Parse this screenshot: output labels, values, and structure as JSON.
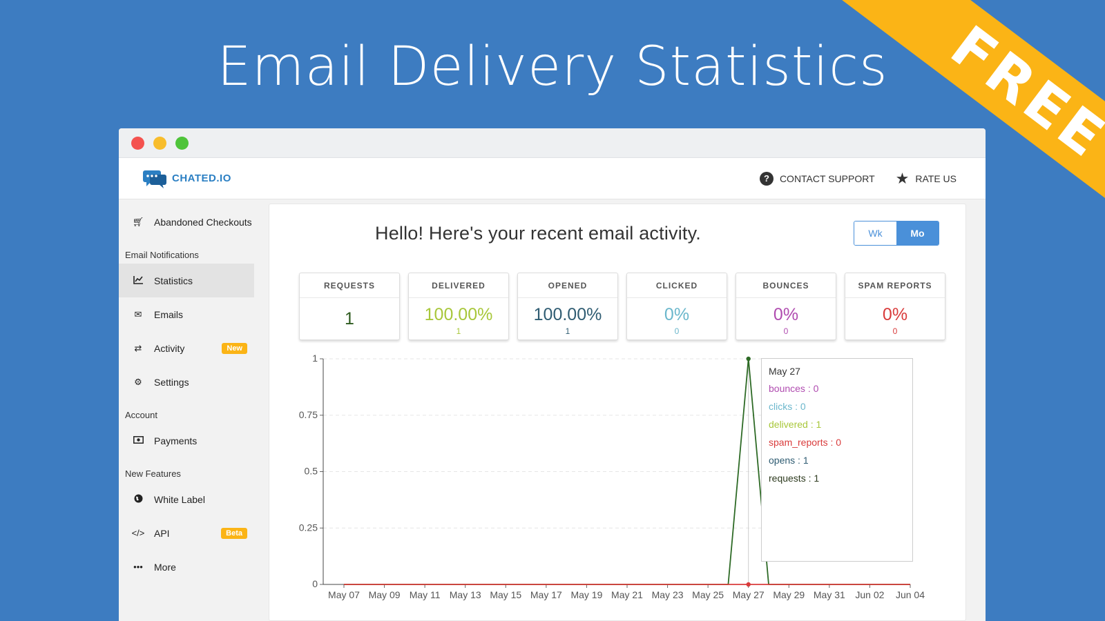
{
  "banner": {
    "title": "Email Delivery Statistics",
    "ribbon": "FREE"
  },
  "app": {
    "logo_text": "CHATED.IO",
    "contact_support": "CONTACT SUPPORT",
    "rate_us": "RATE US"
  },
  "sidebar": {
    "abandoned": "Abandoned Checkouts",
    "section_email": "Email Notifications",
    "statistics": "Statistics",
    "emails": "Emails",
    "activity": "Activity",
    "activity_badge": "New",
    "settings": "Settings",
    "section_account": "Account",
    "payments": "Payments",
    "section_features": "New Features",
    "white_label": "White Label",
    "api": "API",
    "api_badge": "Beta",
    "more": "More"
  },
  "main": {
    "greeting": "Hello! Here's your recent email activity.",
    "toggle_wk": "Wk",
    "toggle_mo": "Mo"
  },
  "cards": [
    {
      "label": "REQUESTS",
      "value": "1",
      "sub": "",
      "color": "#2d5a1e"
    },
    {
      "label": "DELIVERED",
      "value": "100.00%",
      "sub": "1",
      "color": "#a8c73a"
    },
    {
      "label": "OPENED",
      "value": "100.00%",
      "sub": "1",
      "color": "#2f5c72"
    },
    {
      "label": "CLICKED",
      "value": "0%",
      "sub": "0",
      "color": "#6bb7cc"
    },
    {
      "label": "BOUNCES",
      "value": "0%",
      "sub": "0",
      "color": "#b04cb0"
    },
    {
      "label": "SPAM REPORTS",
      "value": "0%",
      "sub": "0",
      "color": "#d93b3b"
    }
  ],
  "tooltip": {
    "date": "May 27",
    "rows": [
      {
        "text": "bounces : 0",
        "color": "#b04cb0"
      },
      {
        "text": "clicks : 0",
        "color": "#6bb7cc"
      },
      {
        "text": "delivered : 1",
        "color": "#a8c73a"
      },
      {
        "text": "spam_reports : 0",
        "color": "#d93b3b"
      },
      {
        "text": "opens : 1",
        "color": "#2f5c72"
      },
      {
        "text": "requests : 1",
        "color": "#2d3a1e"
      }
    ]
  },
  "chart_data": {
    "type": "line",
    "x": [
      "May 07",
      "May 08",
      "May 09",
      "May 10",
      "May 11",
      "May 12",
      "May 13",
      "May 14",
      "May 15",
      "May 16",
      "May 17",
      "May 18",
      "May 19",
      "May 20",
      "May 21",
      "May 22",
      "May 23",
      "May 24",
      "May 25",
      "May 26",
      "May 27",
      "May 28",
      "May 29",
      "May 30",
      "May 31",
      "Jun 01",
      "Jun 02",
      "Jun 03",
      "Jun 04"
    ],
    "xticks": [
      "May 07",
      "May 09",
      "May 11",
      "May 13",
      "May 15",
      "May 17",
      "May 19",
      "May 21",
      "May 23",
      "May 25",
      "May 27",
      "May 29",
      "May 31",
      "Jun 02",
      "Jun 04"
    ],
    "yticks": [
      "0",
      "0.25",
      "0.5",
      "0.75",
      "1"
    ],
    "ylim": [
      0,
      1
    ],
    "grid": true,
    "highlight": "May 27",
    "series": [
      {
        "name": "requests",
        "color": "#2d6a25",
        "values": [
          0,
          0,
          0,
          0,
          0,
          0,
          0,
          0,
          0,
          0,
          0,
          0,
          0,
          0,
          0,
          0,
          0,
          0,
          0,
          0,
          1,
          0,
          0,
          0,
          0,
          0,
          0,
          0,
          0
        ]
      },
      {
        "name": "spam_reports",
        "color": "#d93b3b",
        "values": [
          0,
          0,
          0,
          0,
          0,
          0,
          0,
          0,
          0,
          0,
          0,
          0,
          0,
          0,
          0,
          0,
          0,
          0,
          0,
          0,
          0,
          0,
          0,
          0,
          0,
          0,
          0,
          0,
          0
        ]
      }
    ]
  }
}
